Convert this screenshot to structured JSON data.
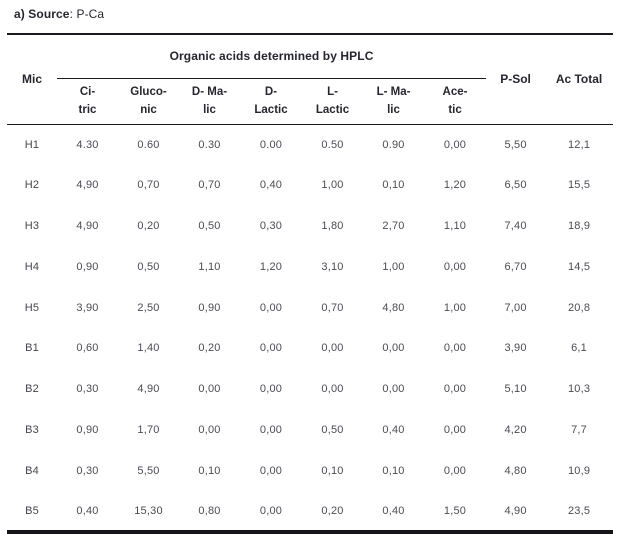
{
  "caption": {
    "label": "a) Source",
    "value": ": P-Ca"
  },
  "table": {
    "mic_header": "Mic",
    "group_header": "Organic acids determined by HPLC",
    "psol_header": "P-Sol",
    "actotal_header": "Ac Total",
    "acid_columns": [
      {
        "id": "citric",
        "line1": "Ci-",
        "line2": "tric"
      },
      {
        "id": "gluconic",
        "line1": "Gluco-",
        "line2": "nic"
      },
      {
        "id": "d-malic",
        "line1": "D- Ma-",
        "line2": "lic"
      },
      {
        "id": "d-lactic",
        "line1": "D-",
        "line2": "Lactic"
      },
      {
        "id": "l-lactic",
        "line1": "L-",
        "line2": "Lactic"
      },
      {
        "id": "l-malic",
        "line1": "L- Ma-",
        "line2": "lic"
      },
      {
        "id": "acetic",
        "line1": "Ace-",
        "line2": "tic"
      }
    ],
    "rows": [
      {
        "mic": "H1",
        "values": [
          "4.30",
          "0.60",
          "0.30",
          "0.00",
          "0.50",
          "0.90",
          "0,00"
        ],
        "psol": "5,50",
        "actotal": "12,1"
      },
      {
        "mic": "H2",
        "values": [
          "4,90",
          "0,70",
          "0,70",
          "0,40",
          "1,00",
          "0,10",
          "1,20"
        ],
        "psol": "6,50",
        "actotal": "15,5"
      },
      {
        "mic": "H3",
        "values": [
          "4,90",
          "0,20",
          "0,50",
          "0,30",
          "1,80",
          "2,70",
          "1,10"
        ],
        "psol": "7,40",
        "actotal": "18,9"
      },
      {
        "mic": "H4",
        "values": [
          "0,90",
          "0,50",
          "1,10",
          "1,20",
          "3,10",
          "1,00",
          "0,00"
        ],
        "psol": "6,70",
        "actotal": "14,5"
      },
      {
        "mic": "H5",
        "values": [
          "3,90",
          "2,50",
          "0,90",
          "0,00",
          "0,70",
          "4,80",
          "1,00"
        ],
        "psol": "7,00",
        "actotal": "20,8"
      },
      {
        "mic": "B1",
        "values": [
          "0,60",
          "1,40",
          "0,20",
          "0,00",
          "0,00",
          "0,00",
          "0,00"
        ],
        "psol": "3,90",
        "actotal": "6,1"
      },
      {
        "mic": "B2",
        "values": [
          "0,30",
          "4,90",
          "0,00",
          "0,00",
          "0,00",
          "0,00",
          "0,00"
        ],
        "psol": "5,10",
        "actotal": "10,3"
      },
      {
        "mic": "B3",
        "values": [
          "0,90",
          "1,70",
          "0,00",
          "0,00",
          "0,50",
          "0,40",
          "0,00"
        ],
        "psol": "4,20",
        "actotal": "7,7"
      },
      {
        "mic": "B4",
        "values": [
          "0,30",
          "5,50",
          "0,10",
          "0,00",
          "0,10",
          "0,10",
          "0,00"
        ],
        "psol": "4,80",
        "actotal": "10,9"
      },
      {
        "mic": "B5",
        "values": [
          "0,40",
          "15,30",
          "0,80",
          "0,00",
          "0,20",
          "0,40",
          "1,50"
        ],
        "psol": "4,90",
        "actotal": "23,5"
      }
    ]
  }
}
